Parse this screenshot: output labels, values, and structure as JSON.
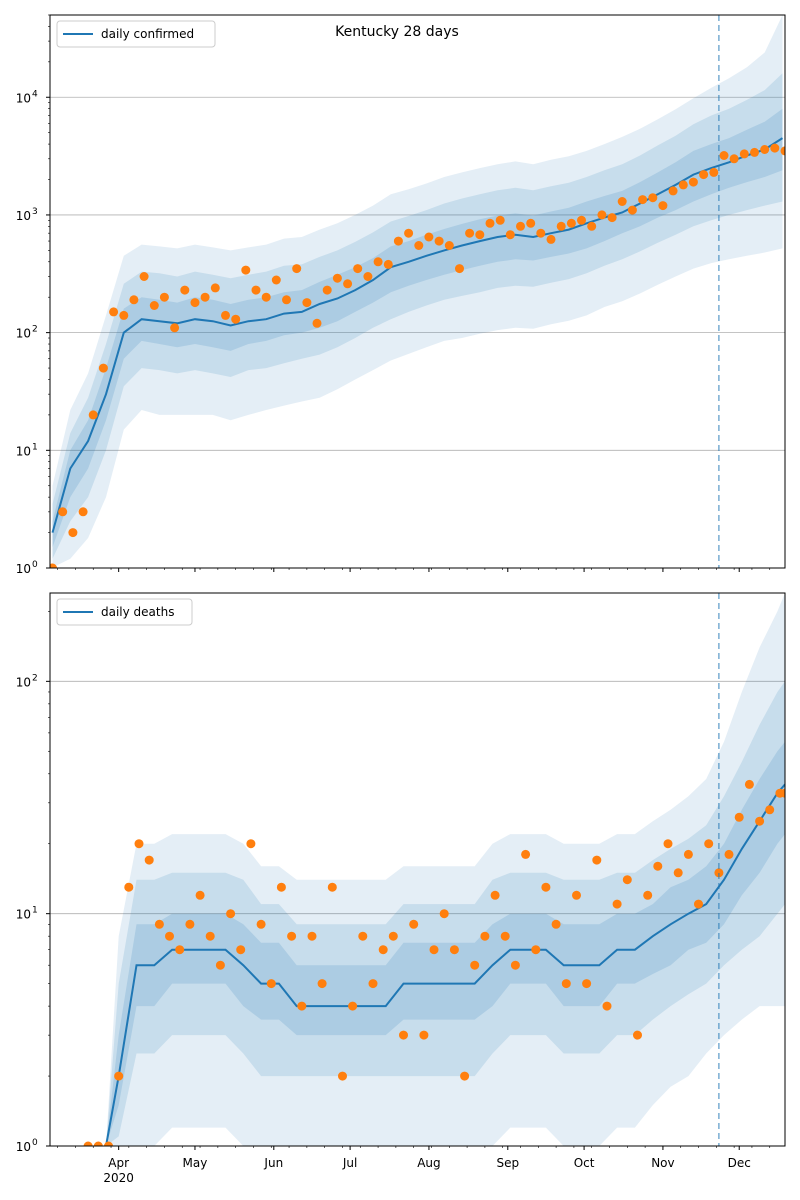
{
  "chart_data": [
    {
      "type": "line",
      "title": "Kentucky 28 days",
      "legend": {
        "label": "daily confirmed",
        "placement": "top-left"
      },
      "yscale": "log",
      "ylim": [
        1,
        50000
      ],
      "y_ticks": [
        {
          "value": 1,
          "label": "10",
          "exp": "0"
        },
        {
          "value": 10,
          "label": "10",
          "exp": "1"
        },
        {
          "value": 100,
          "label": "10",
          "exp": "2"
        },
        {
          "value": 1000,
          "label": "10",
          "exp": "3"
        },
        {
          "value": 10000,
          "label": "10",
          "exp": "4"
        }
      ],
      "grid": "horizontal major",
      "forecast_start": "2020-11-23",
      "model": {
        "dates": [
          "2020-03-06",
          "2020-03-13",
          "2020-03-20",
          "2020-03-27",
          "2020-04-03",
          "2020-04-10",
          "2020-04-17",
          "2020-04-24",
          "2020-05-01",
          "2020-05-08",
          "2020-05-15",
          "2020-05-22",
          "2020-05-29",
          "2020-06-05",
          "2020-06-12",
          "2020-06-19",
          "2020-06-26",
          "2020-07-03",
          "2020-07-10",
          "2020-07-17",
          "2020-07-24",
          "2020-07-31",
          "2020-08-07",
          "2020-08-14",
          "2020-08-21",
          "2020-08-28",
          "2020-09-04",
          "2020-09-11",
          "2020-09-18",
          "2020-09-25",
          "2020-10-02",
          "2020-10-09",
          "2020-10-16",
          "2020-10-23",
          "2020-10-30",
          "2020-11-06",
          "2020-11-13",
          "2020-11-20",
          "2020-11-27",
          "2020-12-04",
          "2020-12-11",
          "2020-12-18"
        ],
        "median": [
          2,
          7,
          12,
          30,
          100,
          130,
          125,
          120,
          130,
          125,
          115,
          125,
          130,
          145,
          150,
          175,
          195,
          230,
          280,
          360,
          400,
          450,
          500,
          550,
          600,
          650,
          680,
          650,
          700,
          750,
          850,
          950,
          1050,
          1250,
          1500,
          1800,
          2200,
          2500,
          2800,
          3200,
          3600,
          4500
        ],
        "band50": [
          [
            1.5,
            4,
            7,
            18,
            60,
            85,
            80,
            75,
            80,
            75,
            70,
            80,
            85,
            95,
            100,
            110,
            125,
            150,
            180,
            220,
            250,
            280,
            310,
            340,
            370,
            400,
            420,
            410,
            440,
            470,
            520,
            600,
            700,
            800,
            950,
            1100,
            1300,
            1500,
            1700,
            1900,
            2100,
            2400
          ],
          [
            2.5,
            10,
            18,
            50,
            160,
            200,
            190,
            180,
            200,
            190,
            175,
            190,
            200,
            220,
            230,
            270,
            310,
            360,
            430,
            540,
            600,
            680,
            760,
            840,
            920,
            990,
            1030,
            990,
            1070,
            1150,
            1300,
            1450,
            1600,
            1900,
            2300,
            2800,
            3500,
            4000,
            4500,
            5300,
            6200,
            8000
          ]
        ],
        "band80": [
          [
            1.2,
            2.5,
            4,
            10,
            35,
            50,
            48,
            45,
            48,
            45,
            42,
            48,
            50,
            55,
            60,
            65,
            75,
            90,
            110,
            130,
            150,
            170,
            190,
            205,
            220,
            240,
            250,
            245,
            265,
            285,
            320,
            370,
            420,
            490,
            580,
            680,
            800,
            900,
            1000,
            1100,
            1200,
            1300
          ],
          [
            3.5,
            14,
            28,
            80,
            260,
            330,
            320,
            300,
            330,
            310,
            290,
            310,
            330,
            370,
            380,
            440,
            500,
            590,
            710,
            880,
            980,
            1100,
            1250,
            1380,
            1500,
            1620,
            1700,
            1620,
            1750,
            1880,
            2100,
            2400,
            2700,
            3200,
            3900,
            4700,
            5900,
            7000,
            8000,
            9500,
            11500,
            16000
          ]
        ],
        "band95": [
          [
            1.01,
            1.2,
            1.8,
            4,
            15,
            22,
            20,
            20,
            20,
            20,
            18,
            20,
            22,
            24,
            26,
            28,
            33,
            40,
            48,
            58,
            66,
            75,
            85,
            90,
            98,
            105,
            110,
            108,
            118,
            126,
            140,
            165,
            185,
            215,
            255,
            300,
            350,
            390,
            420,
            450,
            480,
            520
          ],
          [
            5,
            22,
            45,
            140,
            450,
            560,
            540,
            520,
            560,
            530,
            500,
            530,
            560,
            630,
            650,
            750,
            850,
            1000,
            1200,
            1500,
            1650,
            1850,
            2100,
            2300,
            2500,
            2700,
            2850,
            2700,
            2950,
            3150,
            3500,
            4000,
            4600,
            5400,
            6500,
            7900,
            9800,
            12000,
            14500,
            18000,
            24000,
            50000
          ]
        ]
      },
      "observed": {
        "dates": [
          "2020-03-06",
          "2020-03-10",
          "2020-03-14",
          "2020-03-18",
          "2020-03-22",
          "2020-03-26",
          "2020-03-30",
          "2020-04-03",
          "2020-04-07",
          "2020-04-11",
          "2020-04-15",
          "2020-04-19",
          "2020-04-23",
          "2020-04-27",
          "2020-05-01",
          "2020-05-05",
          "2020-05-09",
          "2020-05-13",
          "2020-05-17",
          "2020-05-21",
          "2020-05-25",
          "2020-05-29",
          "2020-06-02",
          "2020-06-06",
          "2020-06-10",
          "2020-06-14",
          "2020-06-18",
          "2020-06-22",
          "2020-06-26",
          "2020-06-30",
          "2020-07-04",
          "2020-07-08",
          "2020-07-12",
          "2020-07-16",
          "2020-07-20",
          "2020-07-24",
          "2020-07-28",
          "2020-08-01",
          "2020-08-05",
          "2020-08-09",
          "2020-08-13",
          "2020-08-17",
          "2020-08-21",
          "2020-08-25",
          "2020-08-29",
          "2020-09-02",
          "2020-09-06",
          "2020-09-10",
          "2020-09-14",
          "2020-09-18",
          "2020-09-22",
          "2020-09-26",
          "2020-09-30",
          "2020-10-04",
          "2020-10-08",
          "2020-10-12",
          "2020-10-16",
          "2020-10-20",
          "2020-10-24",
          "2020-10-28",
          "2020-11-01",
          "2020-11-05",
          "2020-11-09",
          "2020-11-13",
          "2020-11-17",
          "2020-11-21",
          "2020-11-25",
          "2020-11-29",
          "2020-12-03",
          "2020-12-07",
          "2020-12-11",
          "2020-12-15",
          "2020-12-19"
        ],
        "values": [
          1,
          3,
          2,
          3,
          20,
          50,
          150,
          140,
          190,
          300,
          170,
          200,
          110,
          230,
          180,
          200,
          240,
          140,
          130,
          340,
          230,
          200,
          280,
          190,
          350,
          180,
          120,
          230,
          290,
          260,
          350,
          300,
          400,
          380,
          600,
          700,
          550,
          650,
          600,
          550,
          350,
          700,
          680,
          850,
          900,
          680,
          800,
          850,
          700,
          620,
          800,
          850,
          900,
          800,
          1000,
          950,
          1300,
          1100,
          1350,
          1400,
          1200,
          1600,
          1800,
          1900,
          2200,
          2300,
          3200,
          3000,
          3300,
          3400,
          3600,
          3700,
          3500
        ]
      }
    },
    {
      "type": "line",
      "title": "",
      "legend": {
        "label": "daily deaths",
        "placement": "top-left"
      },
      "yscale": "log",
      "ylim": [
        1,
        240
      ],
      "y_ticks": [
        {
          "value": 1,
          "label": "10",
          "exp": "0"
        },
        {
          "value": 10,
          "label": "10",
          "exp": "1"
        },
        {
          "value": 100,
          "label": "10",
          "exp": "2"
        }
      ],
      "grid": "horizontal major",
      "forecast_start": "2020-11-23",
      "model": {
        "dates": [
          "2020-03-27",
          "2020-04-01",
          "2020-04-08",
          "2020-04-15",
          "2020-04-22",
          "2020-04-29",
          "2020-05-06",
          "2020-05-13",
          "2020-05-20",
          "2020-05-27",
          "2020-06-03",
          "2020-06-10",
          "2020-06-17",
          "2020-06-24",
          "2020-07-01",
          "2020-07-08",
          "2020-07-15",
          "2020-07-22",
          "2020-07-29",
          "2020-08-05",
          "2020-08-12",
          "2020-08-19",
          "2020-08-26",
          "2020-09-02",
          "2020-09-09",
          "2020-09-16",
          "2020-09-23",
          "2020-09-30",
          "2020-10-07",
          "2020-10-14",
          "2020-10-21",
          "2020-10-28",
          "2020-11-04",
          "2020-11-11",
          "2020-11-18",
          "2020-11-25",
          "2020-12-02",
          "2020-12-09",
          "2020-12-16",
          "2020-12-19"
        ],
        "median": [
          1,
          2,
          6,
          6,
          7,
          7,
          7,
          7,
          6,
          5,
          5,
          4,
          4,
          4,
          4,
          4,
          4,
          5,
          5,
          5,
          5,
          5,
          6,
          7,
          7,
          7,
          6,
          6,
          6,
          7,
          7,
          8,
          9,
          10,
          11,
          14,
          19,
          25,
          33,
          36
        ],
        "band50": [
          [
            1,
            1.5,
            4,
            4,
            5,
            5,
            5,
            5,
            4,
            3.5,
            3.5,
            3,
            3,
            3,
            3,
            3,
            3,
            3.5,
            3.5,
            3.5,
            3.5,
            3.5,
            4,
            5,
            5,
            5,
            4,
            4,
            4,
            5,
            5,
            5.5,
            6,
            7,
            7.5,
            9,
            12,
            15,
            20,
            22
          ],
          [
            1,
            3,
            9,
            9,
            10,
            10,
            10,
            10,
            9,
            7.5,
            7.5,
            6,
            6,
            6,
            6,
            6,
            6,
            7.5,
            7.5,
            7.5,
            7.5,
            7.5,
            9,
            10,
            10,
            10,
            9,
            9,
            9,
            10,
            10,
            11,
            13,
            14,
            16,
            20,
            28,
            38,
            50,
            55
          ]
        ],
        "band80": [
          [
            1,
            1.1,
            2.5,
            2.5,
            3,
            3,
            3,
            3,
            2.5,
            2,
            2,
            2,
            2,
            2,
            2,
            2,
            2,
            2,
            2,
            2,
            2,
            2,
            2.5,
            3,
            3,
            3,
            2.5,
            2.5,
            2.5,
            3,
            3,
            3.5,
            4,
            4.5,
            5,
            6,
            7,
            8,
            10,
            11
          ],
          [
            1,
            5,
            14,
            14,
            15,
            15,
            15,
            15,
            14,
            11,
            11,
            9,
            9,
            9,
            9,
            9,
            9,
            11,
            11,
            11,
            11,
            11,
            14,
            15,
            15,
            15,
            14,
            14,
            14,
            15,
            15,
            17,
            19,
            21,
            24,
            32,
            45,
            65,
            90,
            100
          ]
        ],
        "band95": [
          [
            1,
            1,
            1,
            1,
            1.2,
            1.2,
            1.2,
            1.2,
            1,
            1,
            1,
            1,
            1,
            1,
            1,
            1,
            1,
            1,
            1,
            1,
            1,
            1,
            1,
            1.2,
            1.2,
            1.2,
            1,
            1,
            1,
            1.2,
            1.2,
            1.5,
            1.8,
            2,
            2.5,
            3,
            3.5,
            4,
            4,
            4
          ],
          [
            1,
            8,
            20,
            20,
            22,
            22,
            22,
            22,
            20,
            16,
            16,
            14,
            14,
            14,
            14,
            14,
            14,
            16,
            16,
            16,
            16,
            16,
            20,
            22,
            22,
            22,
            20,
            20,
            20,
            22,
            22,
            25,
            28,
            32,
            38,
            55,
            90,
            140,
            200,
            240
          ]
        ]
      },
      "observed": {
        "dates": [
          "2020-03-20",
          "2020-03-24",
          "2020-03-28",
          "2020-04-01",
          "2020-04-05",
          "2020-04-09",
          "2020-04-13",
          "2020-04-17",
          "2020-04-21",
          "2020-04-25",
          "2020-04-29",
          "2020-05-03",
          "2020-05-07",
          "2020-05-11",
          "2020-05-15",
          "2020-05-19",
          "2020-05-23",
          "2020-05-27",
          "2020-05-31",
          "2020-06-04",
          "2020-06-08",
          "2020-06-12",
          "2020-06-16",
          "2020-06-20",
          "2020-06-24",
          "2020-06-28",
          "2020-07-02",
          "2020-07-06",
          "2020-07-10",
          "2020-07-14",
          "2020-07-18",
          "2020-07-22",
          "2020-07-26",
          "2020-07-30",
          "2020-08-03",
          "2020-08-07",
          "2020-08-11",
          "2020-08-15",
          "2020-08-19",
          "2020-08-23",
          "2020-08-27",
          "2020-08-31",
          "2020-09-04",
          "2020-09-08",
          "2020-09-12",
          "2020-09-16",
          "2020-09-20",
          "2020-09-24",
          "2020-09-28",
          "2020-10-02",
          "2020-10-06",
          "2020-10-10",
          "2020-10-14",
          "2020-10-18",
          "2020-10-22",
          "2020-10-26",
          "2020-10-30",
          "2020-11-03",
          "2020-11-07",
          "2020-11-11",
          "2020-11-15",
          "2020-11-19",
          "2020-11-23",
          "2020-11-27",
          "2020-12-01",
          "2020-12-05",
          "2020-12-09",
          "2020-12-13",
          "2020-12-17",
          "2020-12-19"
        ],
        "values": [
          1,
          1,
          1,
          2,
          13,
          20,
          17,
          9,
          8,
          7,
          9,
          12,
          8,
          6,
          10,
          7,
          20,
          9,
          5,
          13,
          8,
          4,
          8,
          5,
          13,
          2,
          4,
          8,
          5,
          7,
          8,
          3,
          9,
          3,
          7,
          10,
          7,
          2,
          6,
          8,
          12,
          8,
          6,
          18,
          7,
          13,
          9,
          5,
          12,
          5,
          17,
          4,
          11,
          14,
          3,
          12,
          16,
          20,
          15,
          18,
          11,
          20,
          15,
          18,
          26,
          36,
          25,
          28,
          33,
          33
        ]
      }
    }
  ],
  "x_axis": {
    "ticks": [
      {
        "date": "2020-04-01",
        "label": "Apr",
        "year": "2020"
      },
      {
        "date": "2020-05-01",
        "label": "May",
        "year": ""
      },
      {
        "date": "2020-06-01",
        "label": "Jun",
        "year": ""
      },
      {
        "date": "2020-07-01",
        "label": "Jul",
        "year": ""
      },
      {
        "date": "2020-08-01",
        "label": "Aug",
        "year": ""
      },
      {
        "date": "2020-09-01",
        "label": "Sep",
        "year": ""
      },
      {
        "date": "2020-10-01",
        "label": "Oct",
        "year": ""
      },
      {
        "date": "2020-11-01",
        "label": "Nov",
        "year": ""
      },
      {
        "date": "2020-12-01",
        "label": "Dec",
        "year": ""
      }
    ],
    "range": [
      "2020-03-05",
      "2020-12-19"
    ]
  },
  "colors": {
    "median_line": "#1f77b4",
    "observed_points": "#ff7f0e",
    "band": "#1f77b4",
    "grid": "#b0b0b0",
    "forecast_line": "#1f77b4"
  }
}
